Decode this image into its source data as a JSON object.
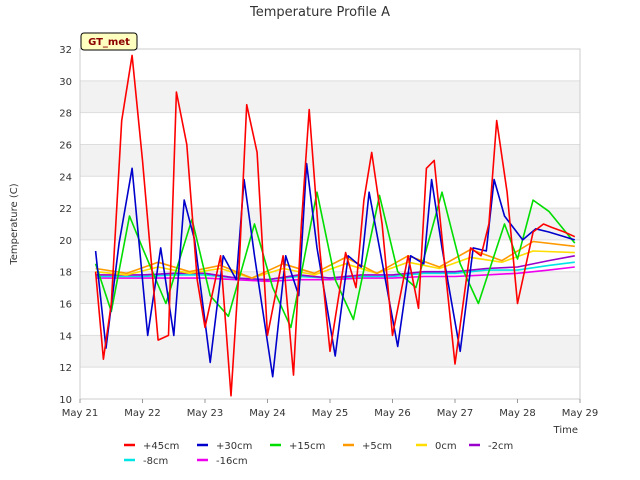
{
  "chart_data": {
    "type": "line",
    "title": "Temperature Profile A",
    "xlabel": "Time",
    "ylabel": "Temperature (C)",
    "ylim": [
      10,
      32
    ],
    "yticks": [
      10,
      12,
      14,
      16,
      18,
      20,
      22,
      24,
      26,
      28,
      30,
      32
    ],
    "xlim": [
      "2024-05-21",
      "2024-05-29"
    ],
    "xticks": [
      "May 21",
      "May 22",
      "May 23",
      "May 24",
      "May 25",
      "May 26",
      "May 27",
      "May 28",
      "May 29"
    ],
    "badge": "GT_met",
    "grid": true,
    "legend_position": "bottom",
    "series": [
      {
        "name": "+45cm",
        "color": "#ff0000",
        "x": [
          "2024-05-21 06:00",
          "2024-05-21 09:00",
          "2024-05-21 12:00",
          "2024-05-21 16:00",
          "2024-05-21 20:00",
          "2024-05-22 00:00",
          "2024-05-22 06:00",
          "2024-05-22 10:00",
          "2024-05-22 13:00",
          "2024-05-22 17:00",
          "2024-05-22 21:00",
          "2024-05-23 00:00",
          "2024-05-23 06:00",
          "2024-05-23 10:00",
          "2024-05-23 13:00",
          "2024-05-23 16:00",
          "2024-05-23 20:00",
          "2024-05-24 00:00",
          "2024-05-24 06:00",
          "2024-05-24 10:00",
          "2024-05-24 13:00",
          "2024-05-24 16:00",
          "2024-05-24 20:00",
          "2024-05-25 00:00",
          "2024-05-25 06:00",
          "2024-05-25 10:00",
          "2024-05-25 13:00",
          "2024-05-25 16:00",
          "2024-05-25 20:00",
          "2024-05-26 00:00",
          "2024-05-26 06:00",
          "2024-05-26 10:00",
          "2024-05-26 13:00",
          "2024-05-26 16:00",
          "2024-05-26 20:00",
          "2024-05-27 00:00",
          "2024-05-27 06:00",
          "2024-05-27 10:00",
          "2024-05-27 13:00",
          "2024-05-27 16:00",
          "2024-05-27 20:00",
          "2024-05-28 00:00",
          "2024-05-28 06:00",
          "2024-05-28 10:00",
          "2024-05-28 13:00",
          "2024-05-28 18:00",
          "2024-05-28 22:00"
        ],
        "y": [
          18.0,
          12.5,
          16.0,
          27.5,
          31.6,
          25.0,
          13.7,
          14.0,
          29.3,
          26.0,
          17.5,
          14.5,
          19.0,
          10.2,
          18.0,
          28.5,
          25.5,
          14.0,
          19.0,
          11.5,
          21.0,
          28.2,
          19.5,
          13.0,
          19.2,
          17.0,
          22.5,
          25.5,
          21.0,
          14.0,
          19.0,
          15.7,
          24.5,
          25.0,
          18.5,
          12.2,
          19.5,
          19.0,
          21.0,
          27.5,
          23.0,
          16.0,
          20.5,
          21.0,
          20.8,
          20.5,
          20.2
        ]
      },
      {
        "name": "+30cm",
        "color": "#0000cc",
        "x": [
          "2024-05-21 06:00",
          "2024-05-21 10:00",
          "2024-05-21 15:00",
          "2024-05-21 20:00",
          "2024-05-22 02:00",
          "2024-05-22 07:00",
          "2024-05-22 12:00",
          "2024-05-22 16:00",
          "2024-05-22 20:00",
          "2024-05-23 02:00",
          "2024-05-23 07:00",
          "2024-05-23 12:00",
          "2024-05-23 15:00",
          "2024-05-23 19:00",
          "2024-05-24 02:00",
          "2024-05-24 07:00",
          "2024-05-24 12:00",
          "2024-05-24 15:00",
          "2024-05-24 19:00",
          "2024-05-25 02:00",
          "2024-05-25 07:00",
          "2024-05-25 12:00",
          "2024-05-25 15:00",
          "2024-05-25 19:00",
          "2024-05-26 02:00",
          "2024-05-26 07:00",
          "2024-05-26 12:00",
          "2024-05-26 15:00",
          "2024-05-26 19:00",
          "2024-05-27 02:00",
          "2024-05-27 07:00",
          "2024-05-27 12:00",
          "2024-05-27 15:00",
          "2024-05-27 19:00",
          "2024-05-28 02:00",
          "2024-05-28 07:00",
          "2024-05-28 12:00",
          "2024-05-28 16:00",
          "2024-05-28 22:00"
        ],
        "y": [
          19.3,
          13.2,
          19.8,
          24.5,
          14.0,
          19.5,
          14.0,
          22.5,
          20.0,
          12.3,
          19.0,
          17.5,
          23.8,
          19.0,
          11.4,
          19.0,
          16.5,
          24.8,
          19.5,
          12.7,
          19.0,
          18.3,
          23.0,
          19.5,
          13.3,
          19.0,
          18.5,
          23.8,
          19.5,
          13.0,
          19.5,
          19.3,
          23.8,
          21.5,
          20.0,
          20.7,
          20.5,
          20.3,
          20.0
        ]
      },
      {
        "name": "+15cm",
        "color": "#00dd00",
        "x": [
          "2024-05-21 06:00",
          "2024-05-21 12:00",
          "2024-05-21 19:00",
          "2024-05-22 00:00",
          "2024-05-22 09:00",
          "2024-05-22 19:00",
          "2024-05-23 02:00",
          "2024-05-23 09:00",
          "2024-05-23 19:00",
          "2024-05-24 02:00",
          "2024-05-24 09:00",
          "2024-05-24 19:00",
          "2024-05-25 02:00",
          "2024-05-25 09:00",
          "2024-05-25 19:00",
          "2024-05-26 02:00",
          "2024-05-26 09:00",
          "2024-05-26 19:00",
          "2024-05-27 02:00",
          "2024-05-27 09:00",
          "2024-05-27 19:00",
          "2024-05-28 00:00",
          "2024-05-28 06:00",
          "2024-05-28 12:00",
          "2024-05-28 22:00"
        ],
        "y": [
          18.5,
          15.5,
          21.5,
          19.5,
          16.0,
          21.3,
          16.5,
          15.2,
          21.0,
          17.0,
          14.5,
          23.0,
          17.5,
          15.0,
          22.8,
          18.0,
          17.0,
          23.0,
          18.5,
          16.0,
          21.0,
          18.8,
          22.5,
          21.8,
          19.8
        ]
      },
      {
        "name": "+5cm",
        "color": "#ff9900",
        "x": [
          "2024-05-21 06:00",
          "2024-05-21 18:00",
          "2024-05-22 06:00",
          "2024-05-22 18:00",
          "2024-05-23 06:00",
          "2024-05-23 18:00",
          "2024-05-24 06:00",
          "2024-05-24 18:00",
          "2024-05-25 06:00",
          "2024-05-25 18:00",
          "2024-05-26 06:00",
          "2024-05-26 18:00",
          "2024-05-27 06:00",
          "2024-05-27 18:00",
          "2024-05-28 06:00",
          "2024-05-28 22:00"
        ],
        "y": [
          18.2,
          17.9,
          18.6,
          18.0,
          18.4,
          17.6,
          18.5,
          17.9,
          18.9,
          17.9,
          19.0,
          18.3,
          19.4,
          18.7,
          19.9,
          19.6
        ]
      },
      {
        "name": "0cm",
        "color": "#ffdd00",
        "x": [
          "2024-05-21 06:00",
          "2024-05-21 18:00",
          "2024-05-22 06:00",
          "2024-05-22 18:00",
          "2024-05-23 06:00",
          "2024-05-23 18:00",
          "2024-05-24 06:00",
          "2024-05-24 18:00",
          "2024-05-25 06:00",
          "2024-05-25 18:00",
          "2024-05-26 06:00",
          "2024-05-26 18:00",
          "2024-05-27 06:00",
          "2024-05-27 18:00",
          "2024-05-28 06:00",
          "2024-05-28 22:00"
        ],
        "y": [
          18.0,
          17.8,
          18.3,
          17.9,
          18.2,
          17.6,
          18.2,
          17.8,
          18.5,
          17.9,
          18.6,
          18.2,
          18.9,
          18.6,
          19.3,
          19.2
        ]
      },
      {
        "name": "-2cm",
        "color": "#9900cc",
        "x": [
          "2024-05-21 06:00",
          "2024-05-22 00:00",
          "2024-05-22 12:00",
          "2024-05-23 00:00",
          "2024-05-23 12:00",
          "2024-05-24 00:00",
          "2024-05-24 12:00",
          "2024-05-25 00:00",
          "2024-05-25 12:00",
          "2024-05-26 00:00",
          "2024-05-26 12:00",
          "2024-05-27 00:00",
          "2024-05-27 12:00",
          "2024-05-28 00:00",
          "2024-05-28 12:00",
          "2024-05-28 22:00"
        ],
        "y": [
          17.8,
          17.8,
          17.9,
          17.9,
          17.6,
          17.5,
          17.8,
          17.6,
          17.8,
          17.8,
          18.0,
          18.0,
          18.2,
          18.3,
          18.7,
          19.0
        ]
      },
      {
        "name": "-8cm",
        "color": "#00e5e5",
        "x": [
          "2024-05-21 06:00",
          "2024-05-22 00:00",
          "2024-05-22 12:00",
          "2024-05-23 00:00",
          "2024-05-23 12:00",
          "2024-05-24 00:00",
          "2024-05-24 12:00",
          "2024-05-25 00:00",
          "2024-05-25 12:00",
          "2024-05-26 00:00",
          "2024-05-26 12:00",
          "2024-05-27 00:00",
          "2024-05-27 12:00",
          "2024-05-28 00:00",
          "2024-05-28 12:00",
          "2024-05-28 22:00"
        ],
        "y": [
          17.7,
          17.7,
          17.8,
          17.8,
          17.6,
          17.5,
          17.7,
          17.6,
          17.7,
          17.7,
          17.9,
          17.9,
          18.1,
          18.1,
          18.4,
          18.6
        ]
      },
      {
        "name": "-16cm",
        "color": "#ee00ee",
        "x": [
          "2024-05-21 06:00",
          "2024-05-22 00:00",
          "2024-05-22 12:00",
          "2024-05-23 00:00",
          "2024-05-23 12:00",
          "2024-05-24 00:00",
          "2024-05-24 12:00",
          "2024-05-25 00:00",
          "2024-05-25 12:00",
          "2024-05-26 00:00",
          "2024-05-26 12:00",
          "2024-05-27 00:00",
          "2024-05-27 12:00",
          "2024-05-28 00:00",
          "2024-05-28 12:00",
          "2024-05-28 22:00"
        ],
        "y": [
          17.6,
          17.6,
          17.6,
          17.6,
          17.5,
          17.4,
          17.5,
          17.5,
          17.6,
          17.6,
          17.7,
          17.7,
          17.8,
          17.9,
          18.1,
          18.3
        ]
      }
    ]
  }
}
